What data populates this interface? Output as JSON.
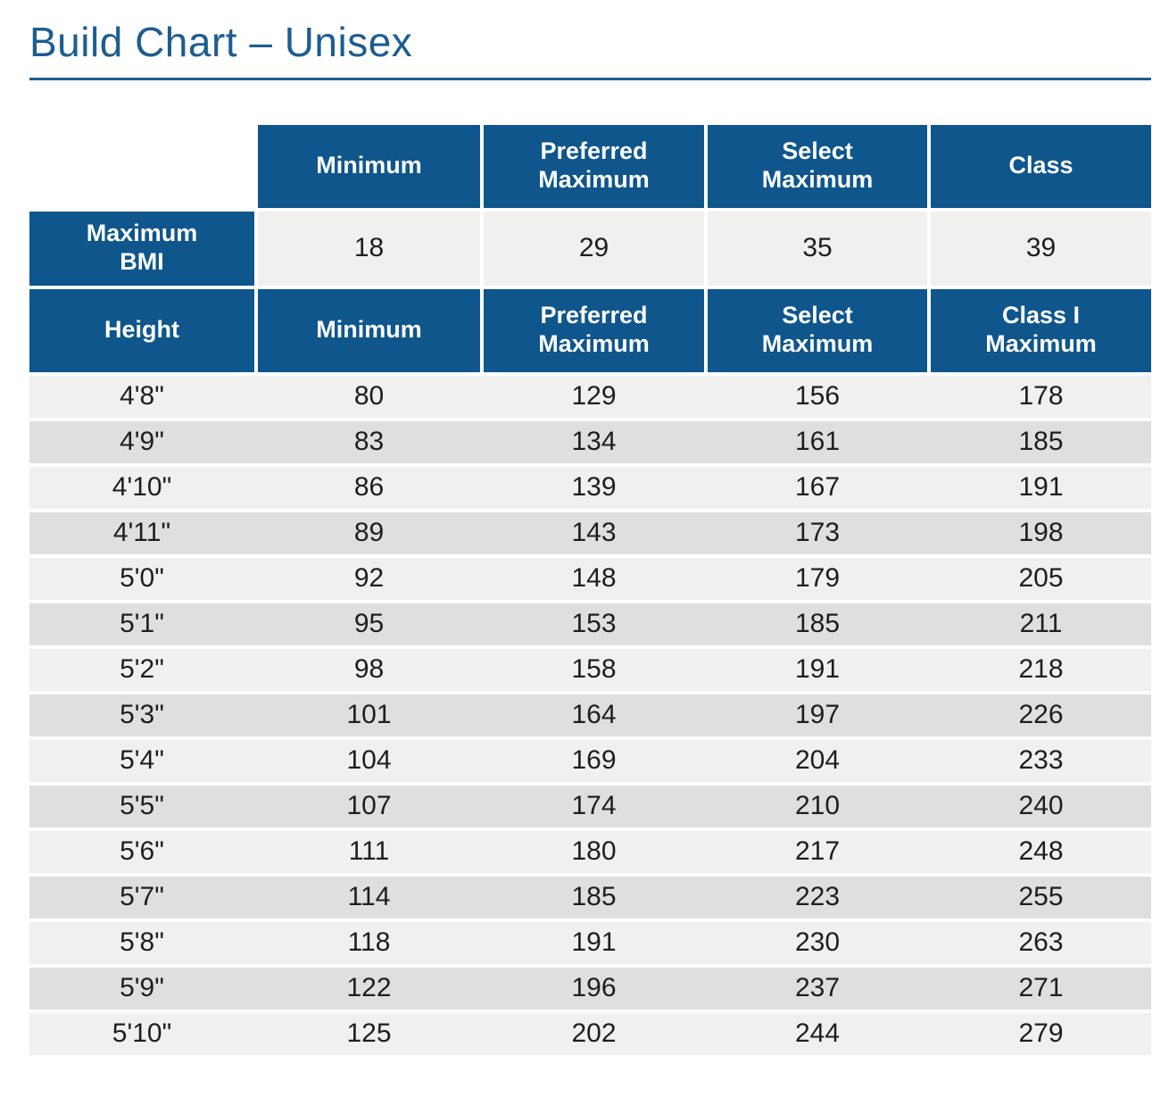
{
  "page": {
    "title": "Build Chart – Unisex"
  },
  "colors": {
    "header_blue": "#0e568c",
    "title_blue": "#1d5d90",
    "row_light": "#f0f0ef",
    "row_dark": "#dfdfde",
    "text_dark": "#1e1e1e"
  },
  "table": {
    "bmi_headers": [
      "Minimum",
      "Preferred\nMaximum",
      "Select\nMaximum",
      "Class"
    ],
    "bmi_row": {
      "label": "Maximum\nBMI",
      "values": [
        "18",
        "29",
        "35",
        "39"
      ]
    },
    "column_headers": [
      "Height",
      "Minimum",
      "Preferred\nMaximum",
      "Select\nMaximum",
      "Class I\nMaximum"
    ],
    "rows": [
      {
        "height": "4'8\"",
        "values": [
          "80",
          "129",
          "156",
          "178"
        ]
      },
      {
        "height": "4'9\"",
        "values": [
          "83",
          "134",
          "161",
          "185"
        ]
      },
      {
        "height": "4'10\"",
        "values": [
          "86",
          "139",
          "167",
          "191"
        ]
      },
      {
        "height": "4'11\"",
        "values": [
          "89",
          "143",
          "173",
          "198"
        ]
      },
      {
        "height": "5'0\"",
        "values": [
          "92",
          "148",
          "179",
          "205"
        ]
      },
      {
        "height": "5'1\"",
        "values": [
          "95",
          "153",
          "185",
          "211"
        ]
      },
      {
        "height": "5'2\"",
        "values": [
          "98",
          "158",
          "191",
          "218"
        ]
      },
      {
        "height": "5'3\"",
        "values": [
          "101",
          "164",
          "197",
          "226"
        ]
      },
      {
        "height": "5'4\"",
        "values": [
          "104",
          "169",
          "204",
          "233"
        ]
      },
      {
        "height": "5'5\"",
        "values": [
          "107",
          "174",
          "210",
          "240"
        ]
      },
      {
        "height": "5'6\"",
        "values": [
          "111",
          "180",
          "217",
          "248"
        ]
      },
      {
        "height": "5'7\"",
        "values": [
          "114",
          "185",
          "223",
          "255"
        ]
      },
      {
        "height": "5'8\"",
        "values": [
          "118",
          "191",
          "230",
          "263"
        ]
      },
      {
        "height": "5'9\"",
        "values": [
          "122",
          "196",
          "237",
          "271"
        ]
      },
      {
        "height": "5'10\"",
        "values": [
          "125",
          "202",
          "244",
          "279"
        ]
      }
    ]
  }
}
